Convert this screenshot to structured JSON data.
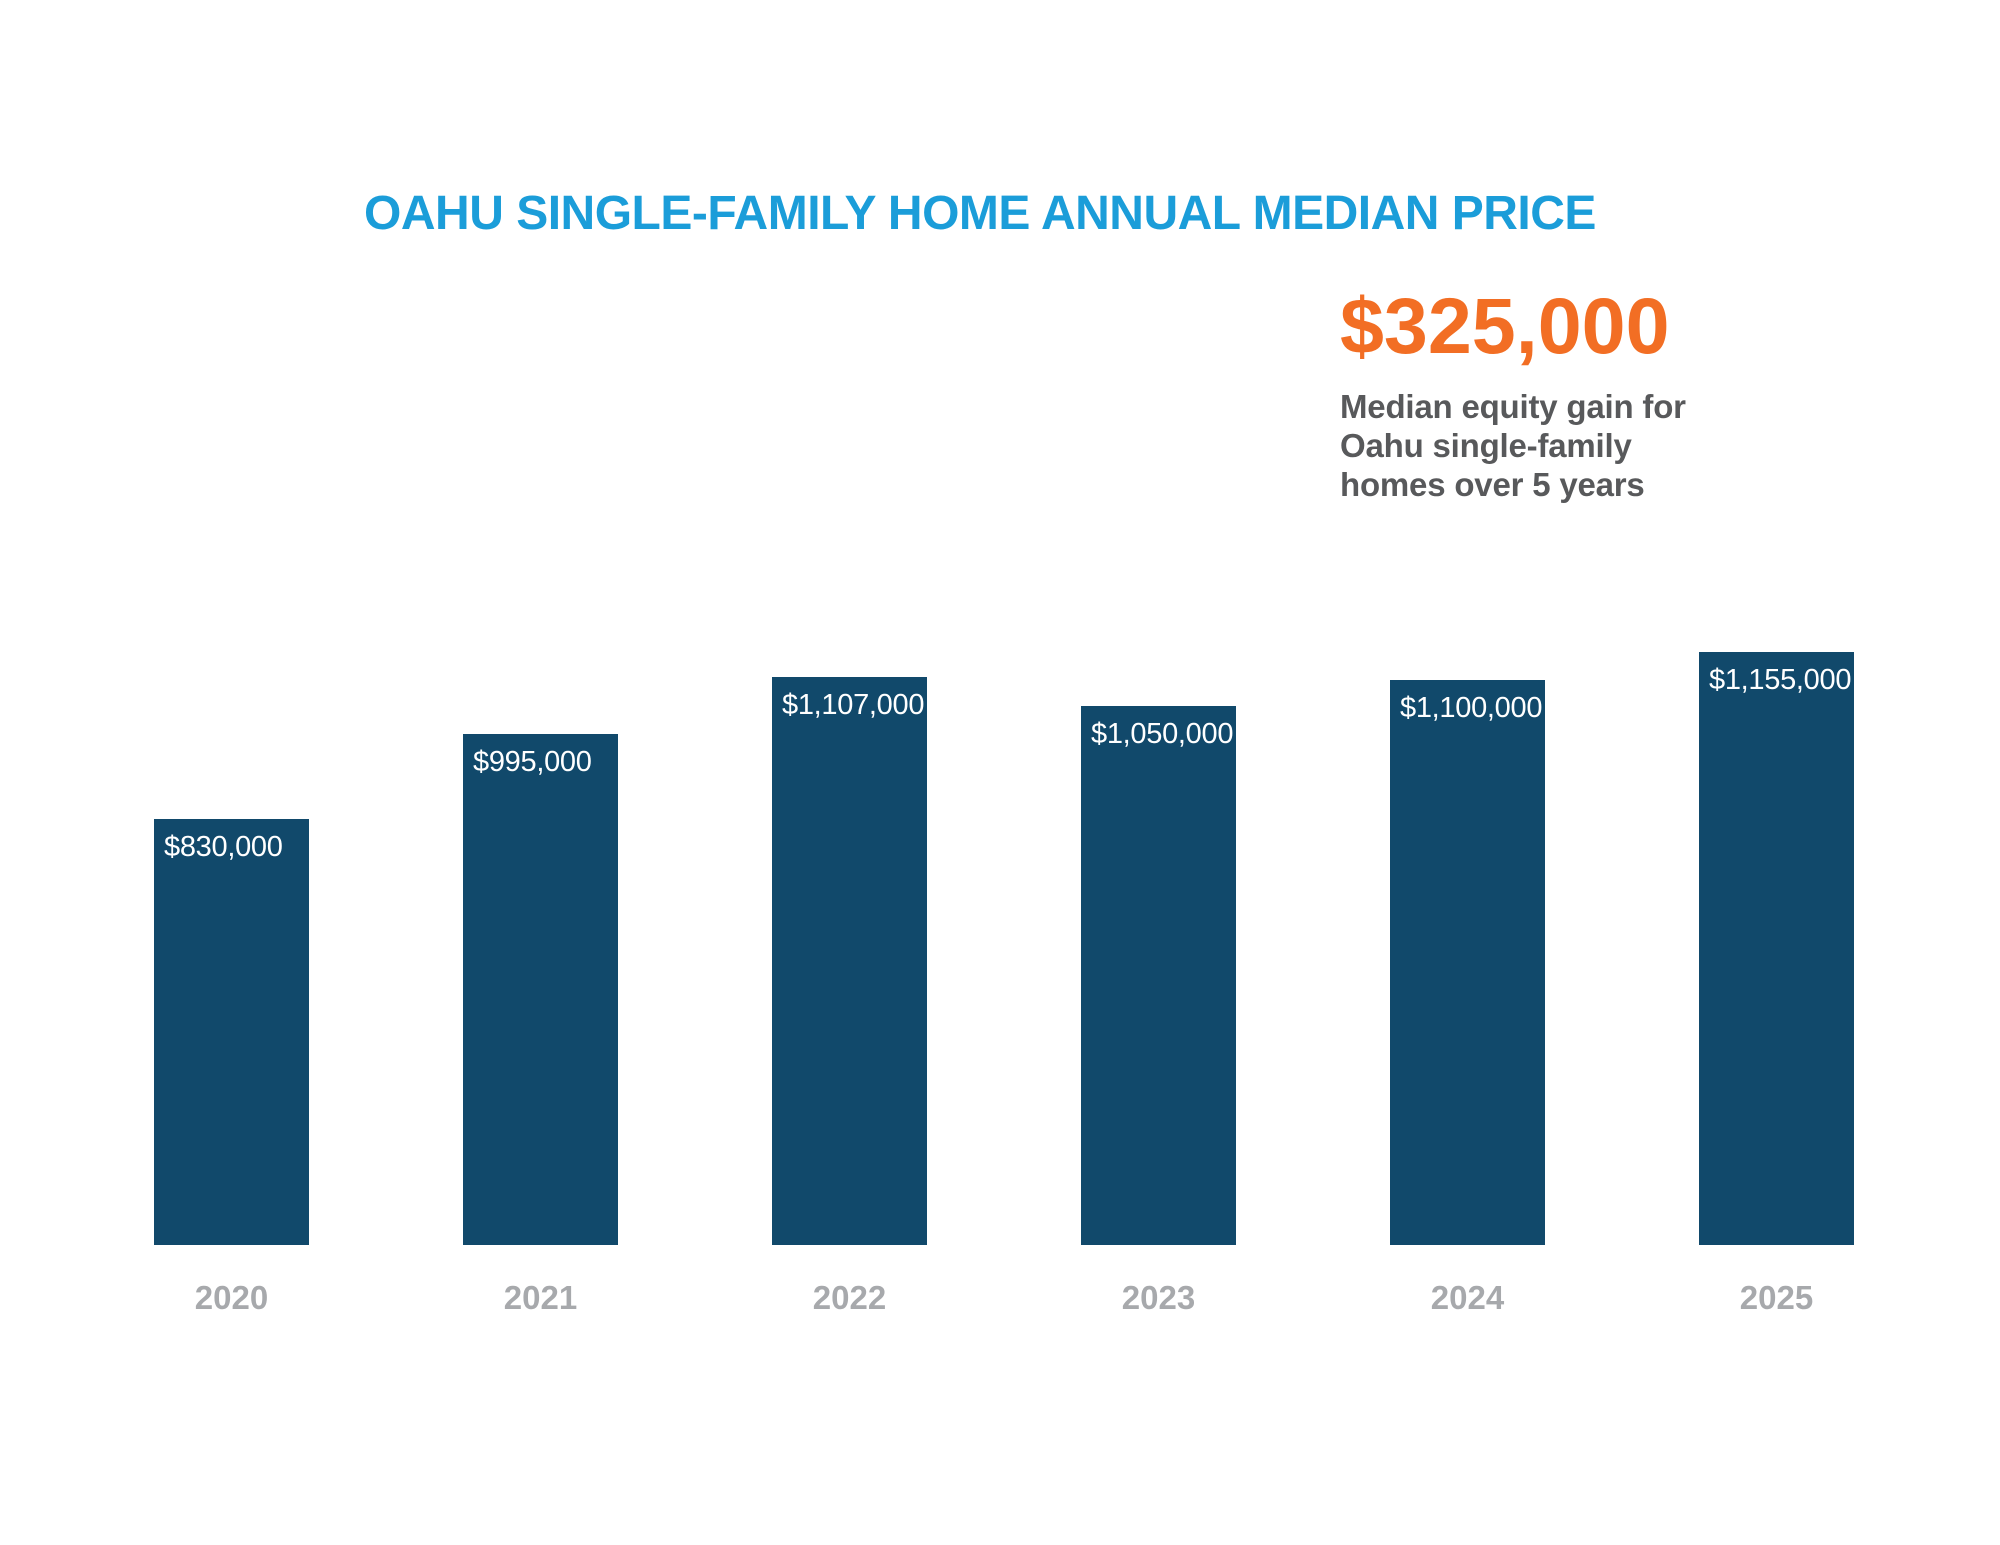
{
  "page": {
    "background_color": "#FFFFFF"
  },
  "callout": {
    "value": "$325,000",
    "value_color": "#F26E24",
    "description_lines": [
      "Median equity gain for",
      "Oahu single-family",
      "homes over 5 years"
    ],
    "description_color": "#58595B"
  },
  "chart_data": {
    "type": "bar",
    "title": "OAHU SINGLE-FAMILY HOME ANNUAL MEDIAN PRICE",
    "title_color": "#1B9DD9",
    "categories": [
      "2020",
      "2021",
      "2022",
      "2023",
      "2024",
      "2025"
    ],
    "values": [
      830000,
      995000,
      1107000,
      1050000,
      1100000,
      1155000
    ],
    "bar_labels": [
      "$830,000",
      "$995,000",
      "$1,107,000",
      "$1,050,000",
      "$1,100,000",
      "$1,155,000"
    ],
    "xlabel": "",
    "ylabel": "",
    "ylim": [
      0,
      1155000
    ],
    "grid": false,
    "legend": false,
    "bar_color": "#11496B",
    "bar_label_color": "#FFFFFF",
    "axis_label_color": "#A7A9AC"
  }
}
